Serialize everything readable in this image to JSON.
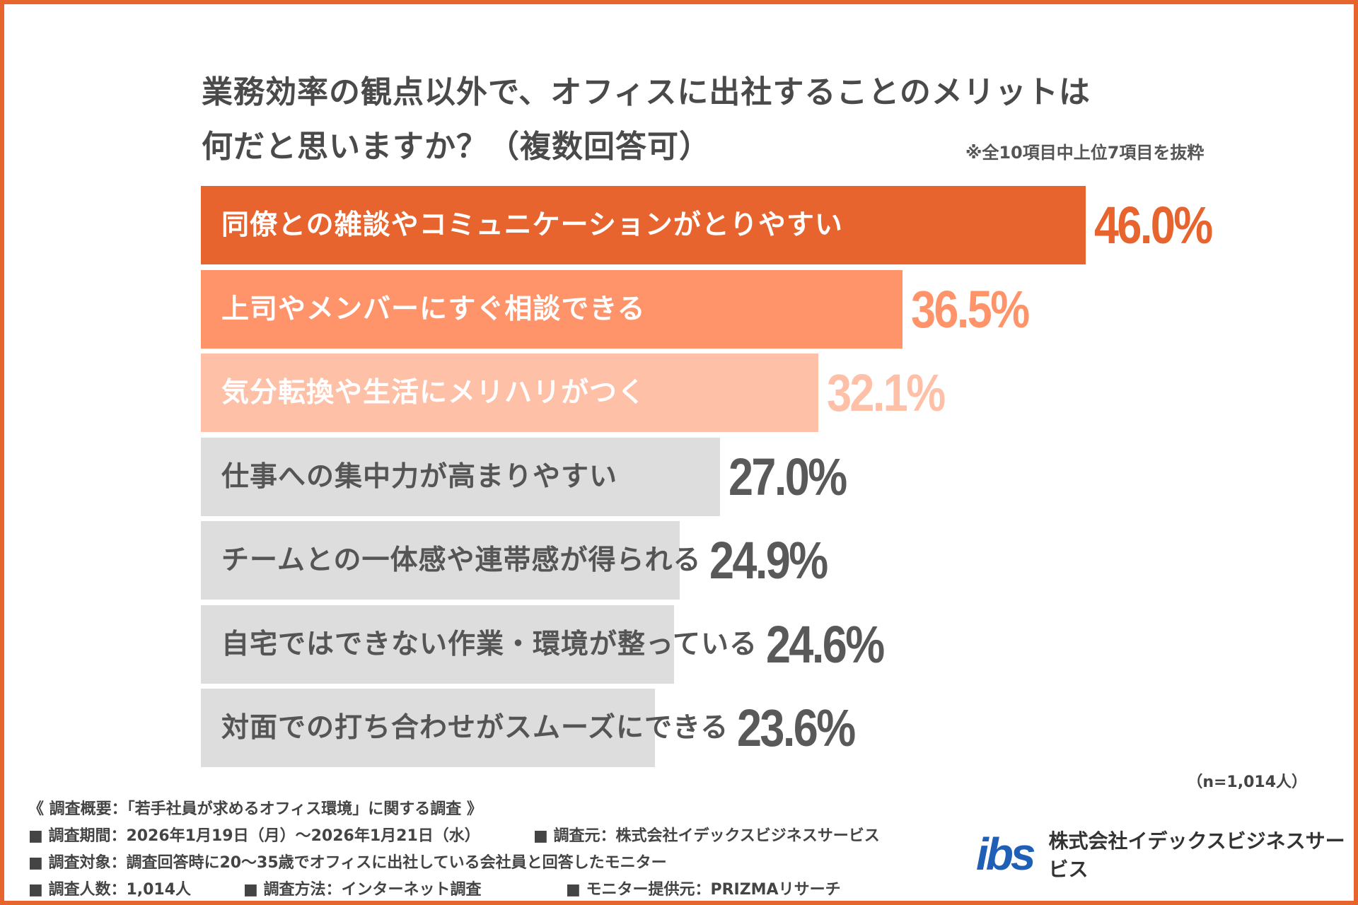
{
  "chart_data": {
    "type": "bar",
    "orientation": "horizontal",
    "title": "業務効率の観点以外で、オフィスに出社することのメリットは何だと思いますか？（複数回答可）",
    "title_lines": [
      "業務効率の観点以外で、オフィスに出社することのメリットは",
      "何だと思いますか？（複数回答可）"
    ],
    "note": "※全10項目中上位7項目を抜粋",
    "categories": [
      "同僚との雑談やコミュニケーションがとりやすい",
      "上司やメンバーにすぐ相談できる",
      "気分転換や生活にメリハリがつく",
      "仕事への集中力が高まりやすい",
      "チームとの一体感や連帯感が得られる",
      "自宅ではできない作業・環境が整っている",
      "対面での打ち合わせがスムーズにできる"
    ],
    "values": [
      46.0,
      36.5,
      32.1,
      27.0,
      24.9,
      24.6,
      23.6
    ],
    "value_labels": [
      "46.0%",
      "36.5%",
      "32.1%",
      "27.0%",
      "24.9%",
      "24.6%",
      "23.6%"
    ],
    "bar_colors": [
      "#E8642F",
      "#FF946B",
      "#FFC0A8",
      "#DDDDDD",
      "#DDDDDD",
      "#DDDDDD",
      "#DDDDDD"
    ],
    "label_colors": [
      "#FFFFFF",
      "#FFFFFF",
      "#FFFFFF",
      "#555555",
      "#555555",
      "#555555",
      "#555555"
    ],
    "value_colors": [
      "#E8642F",
      "#FF946B",
      "#FFC0A8",
      "#595959",
      "#595959",
      "#595959",
      "#595959"
    ],
    "unit": "%",
    "grid": false
  },
  "sample": "（n=1,014人）",
  "footer": {
    "heading": "《 調査概要：「若手社員が求めるオフィス環境」に関する調査 》",
    "period": "■ 調査期間：2026年1月19日（月）～2026年1月21日（水）",
    "source": "■ 調査元：株式会社イデックスビジネスサービス",
    "target": "■ 調査対象：調査回答時に20～35歳でオフィスに出社している会社員と回答したモニター",
    "count": "■ 調査人数：1,014人",
    "method": "■ 調査方法：インターネット調査",
    "provider": "■ モニター提供元：PRIZMAリサーチ"
  },
  "logo": {
    "mark": "ibs",
    "company": "株式会社イデックスビジネスサービス"
  }
}
